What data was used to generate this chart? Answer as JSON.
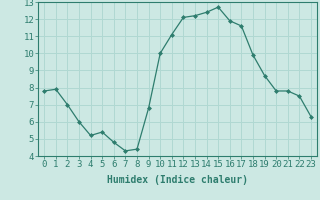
{
  "x": [
    0,
    1,
    2,
    3,
    4,
    5,
    6,
    7,
    8,
    9,
    10,
    11,
    12,
    13,
    14,
    15,
    16,
    17,
    18,
    19,
    20,
    21,
    22,
    23
  ],
  "y": [
    7.8,
    7.9,
    7.0,
    6.0,
    5.2,
    5.4,
    4.8,
    4.3,
    4.4,
    6.8,
    10.0,
    11.1,
    12.1,
    12.2,
    12.4,
    12.7,
    11.9,
    11.6,
    9.9,
    8.7,
    7.8,
    7.8,
    7.5,
    6.3
  ],
  "ylim": [
    4,
    13
  ],
  "yticks": [
    4,
    5,
    6,
    7,
    8,
    9,
    10,
    11,
    12,
    13
  ],
  "xtick_labels": [
    "0",
    "1",
    "2",
    "3",
    "4",
    "5",
    "6",
    "7",
    "8",
    "9",
    "10",
    "11",
    "12",
    "13",
    "14",
    "15",
    "16",
    "17",
    "18",
    "19",
    "20",
    "21",
    "22",
    "23"
  ],
  "xlabel": "Humidex (Indice chaleur)",
  "line_color": "#2e7d6e",
  "marker": "D",
  "marker_size": 2.0,
  "bg_color": "#cce8e3",
  "grid_color": "#b0d8d2",
  "label_fontsize": 7,
  "tick_fontsize": 6.5
}
